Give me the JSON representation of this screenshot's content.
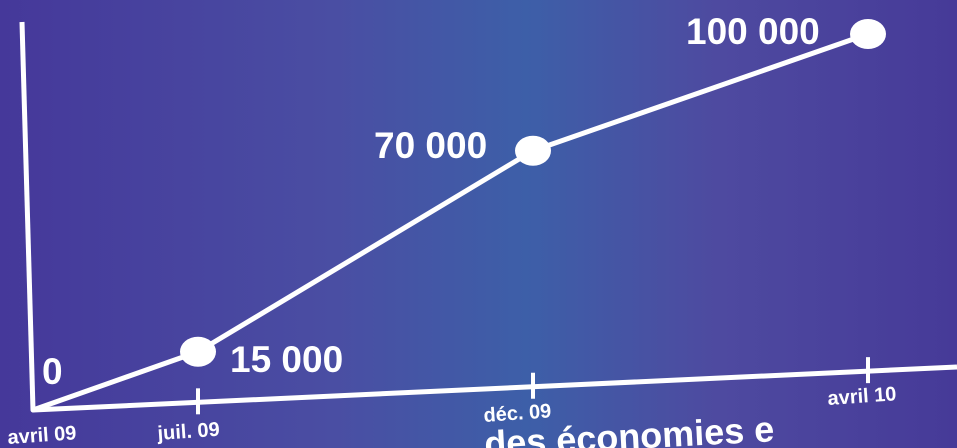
{
  "chart_data": {
    "type": "line",
    "categories": [
      "avril 09",
      "juil. 09",
      "déc. 09",
      "avril 10"
    ],
    "values": [
      0,
      15000,
      70000,
      100000
    ],
    "value_labels": [
      "0",
      "15 000",
      "70 000",
      "100 000"
    ],
    "ylim": [
      0,
      100000
    ],
    "grid": false,
    "colors": {
      "line": "#ffffff",
      "background_left": "#45389a",
      "background_mid": "#3d5fa8"
    }
  },
  "caption_fragment": "...des économies e"
}
